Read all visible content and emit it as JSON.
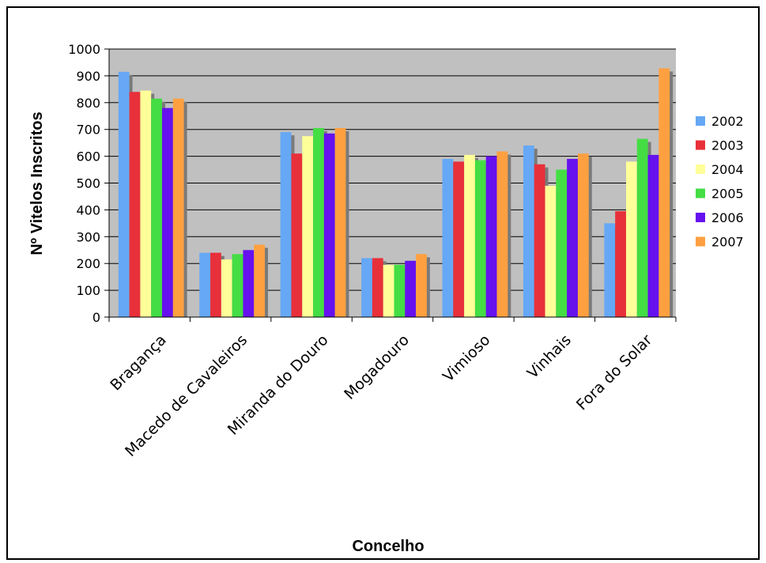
{
  "chart_data": {
    "type": "bar",
    "title": "",
    "xlabel": "Concelho",
    "ylabel": "Nº Vitelos Inscritos",
    "ylim": [
      0,
      1000
    ],
    "yticks": [
      0,
      100,
      200,
      300,
      400,
      500,
      600,
      700,
      800,
      900,
      1000
    ],
    "grid": true,
    "legend_position": "right",
    "categories": [
      "Bragança",
      "Macedo de Cavaleiros",
      "Miranda do Douro",
      "Mogadouro",
      "Vimioso",
      "Vinhais",
      "Fora do Solar"
    ],
    "series": [
      {
        "name": "2002",
        "color": "#66a8f5",
        "values": [
          915,
          240,
          690,
          220,
          590,
          640,
          350
        ]
      },
      {
        "name": "2003",
        "color": "#e8303a",
        "values": [
          840,
          240,
          610,
          220,
          580,
          570,
          395
        ]
      },
      {
        "name": "2004",
        "color": "#ffff99",
        "values": [
          845,
          215,
          675,
          195,
          605,
          490,
          580
        ]
      },
      {
        "name": "2005",
        "color": "#44dd44",
        "values": [
          815,
          235,
          705,
          195,
          585,
          550,
          665
        ]
      },
      {
        "name": "2006",
        "color": "#6611ee",
        "values": [
          780,
          250,
          685,
          210,
          600,
          590,
          605
        ]
      },
      {
        "name": "2007",
        "color": "#ffa040",
        "values": [
          815,
          270,
          705,
          235,
          618,
          610,
          928
        ]
      }
    ],
    "plot_background": "#c0c0c0",
    "shadow_color": "#7a7a7a"
  }
}
